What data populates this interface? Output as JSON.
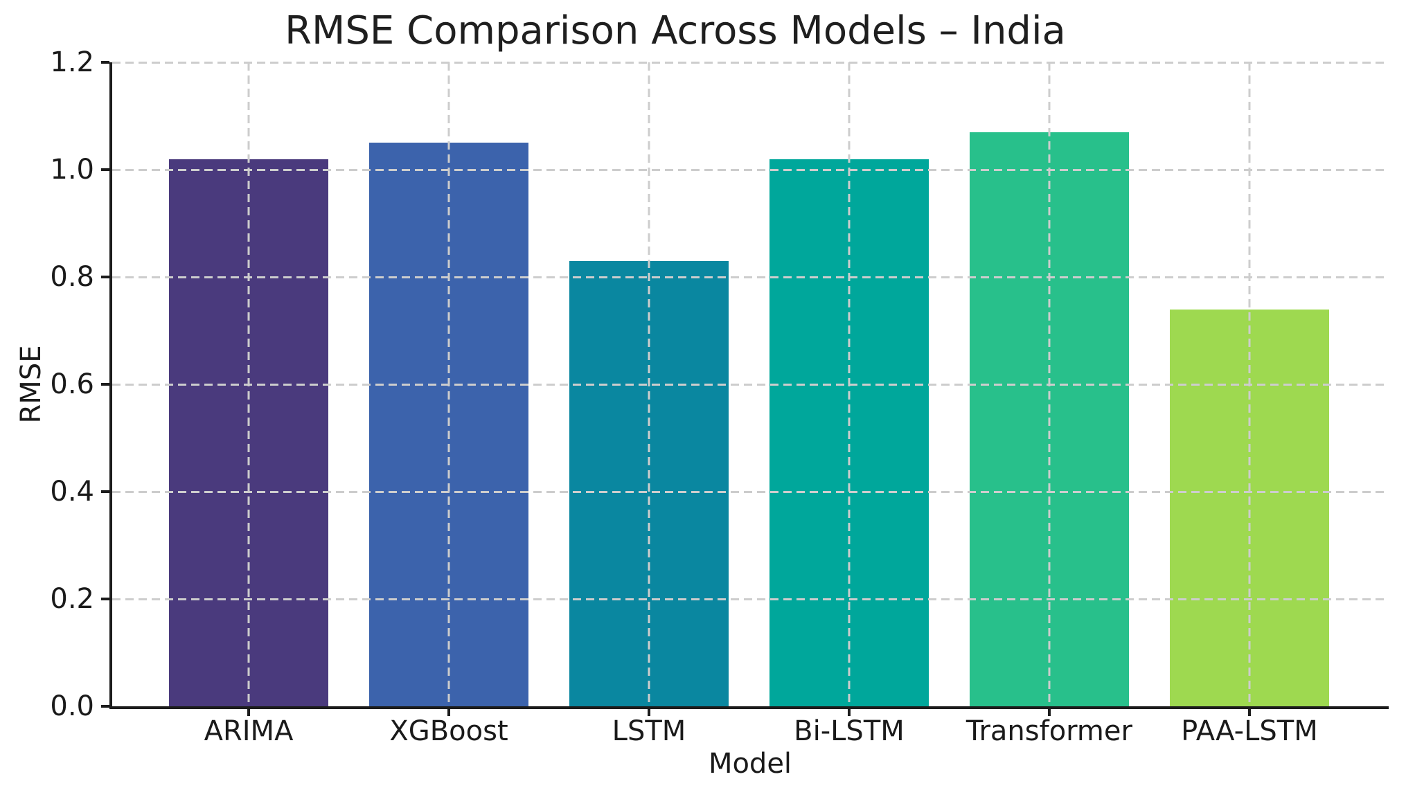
{
  "chart_data": {
    "type": "bar",
    "title": "RMSE Comparison Across Models – India",
    "xlabel": "Model",
    "ylabel": "RMSE",
    "categories": [
      "ARIMA",
      "XGBoost",
      "LSTM",
      "Bi-LSTM",
      "Transformer",
      "PAA-LSTM"
    ],
    "values": [
      1.02,
      1.05,
      0.83,
      1.02,
      1.07,
      0.74
    ],
    "bar_colors": [
      "#4a3a7d",
      "#3c63ac",
      "#0a87a0",
      "#00a79b",
      "#28c08b",
      "#9ed950"
    ],
    "ylim": [
      0,
      1.2
    ],
    "ytick_labels": [
      "0.0",
      "0.2",
      "0.4",
      "0.6",
      "0.8",
      "1.0",
      "1.2"
    ],
    "grid": {
      "style": "dashed",
      "axes": "both",
      "color": "#cdcdcd"
    },
    "legend_position": "none"
  },
  "colors": {
    "background": "#ffffff",
    "axis": "#1c1c1c",
    "text": "#1a1a1a"
  }
}
